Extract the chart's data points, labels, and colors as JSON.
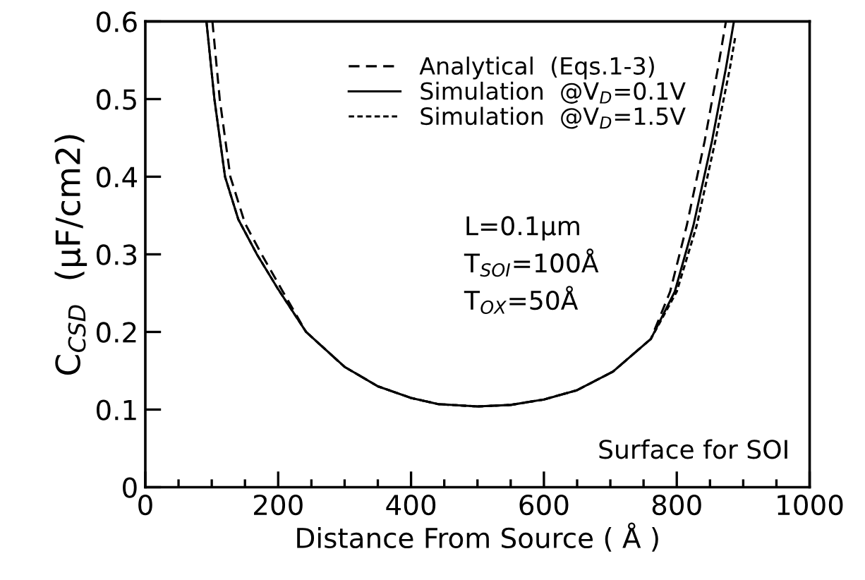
{
  "chart_data": {
    "type": "line",
    "xlabel": "Distance From Source ( Å )",
    "ylabel": "C$_{CSD}$  (μF/cm2)",
    "xlim": [
      0,
      1000
    ],
    "ylim": [
      0,
      0.6
    ],
    "xticks": [
      0,
      {
        "value": 50,
        "label": null
      },
      {
        "value": 100,
        "label": null
      },
      {
        "value": 150,
        "label": null
      },
      200,
      {
        "value": 250,
        "label": null
      },
      {
        "value": 300,
        "label": null
      },
      {
        "value": 350,
        "label": null
      },
      400,
      {
        "value": 450,
        "label": null
      },
      {
        "value": 500,
        "label": null
      },
      {
        "value": 550,
        "label": null
      },
      600,
      {
        "value": 650,
        "label": null
      },
      {
        "value": 700,
        "label": null
      },
      {
        "value": 750,
        "label": null
      },
      800,
      {
        "value": 850,
        "label": null
      },
      {
        "value": 900,
        "label": null
      },
      {
        "value": 950,
        "label": null
      },
      1000
    ],
    "yticks": [
      0,
      0.1,
      0.2,
      0.3,
      0.4,
      0.5,
      0.6
    ],
    "grid": false,
    "legend": "top",
    "marker": "none",
    "annotations": [
      "L=0.1μm",
      "T$_{SOI}$=100Å",
      "T$_{OX}$=50Å",
      "Surface for SOI"
    ],
    "series": [
      {
        "name": "Analytical  (Eqs.1-3)",
        "color": "#000000",
        "line_style": "dashed",
        "x": [
          101,
          112,
          128,
          150,
          175,
          205,
          242,
          300,
          350,
          400,
          441,
          500,
          550,
          600,
          650,
          704,
          761,
          790,
          815,
          842,
          862,
          874
        ],
        "values": [
          0.6,
          0.5,
          0.4,
          0.34,
          0.3,
          0.255,
          0.2,
          0.155,
          0.13,
          0.115,
          0.107,
          0.104,
          0.106,
          0.113,
          0.125,
          0.149,
          0.191,
          0.252,
          0.337,
          0.446,
          0.54,
          0.6
        ]
      },
      {
        "name": "Simulation  @V$_{D}$=0.1V",
        "color": "#000000",
        "line_style": "solid",
        "x": [
          92,
          104,
          120,
          140,
          168,
          200,
          242,
          300,
          350,
          400,
          441,
          500,
          550,
          600,
          650,
          704,
          761,
          797,
          825,
          853,
          874,
          886
        ],
        "values": [
          0.6,
          0.5,
          0.4,
          0.345,
          0.3,
          0.255,
          0.2,
          0.155,
          0.13,
          0.115,
          0.107,
          0.104,
          0.106,
          0.113,
          0.125,
          0.149,
          0.191,
          0.252,
          0.337,
          0.446,
          0.54,
          0.6
        ]
      },
      {
        "name": "Simulation  @V$_{D}$=1.5V",
        "color": "#000000",
        "line_style": "dotted",
        "x": [
          92,
          104,
          120,
          140,
          168,
          200,
          242,
          300,
          350,
          400,
          441,
          500,
          550,
          600,
          650,
          704,
          761,
          800,
          830,
          858,
          880,
          888
        ],
        "values": [
          0.6,
          0.5,
          0.4,
          0.345,
          0.3,
          0.255,
          0.2,
          0.155,
          0.13,
          0.115,
          0.107,
          0.104,
          0.106,
          0.113,
          0.125,
          0.149,
          0.191,
          0.252,
          0.337,
          0.446,
          0.54,
          0.58
        ]
      }
    ]
  }
}
